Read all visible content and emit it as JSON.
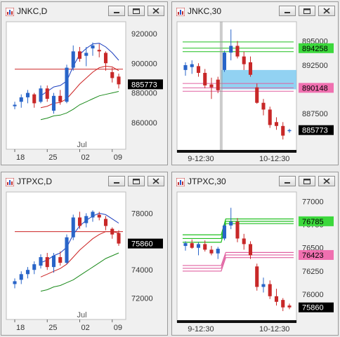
{
  "colors": {
    "up": "#2864c8",
    "down": "#c82828",
    "chart_bg": "#ffffff",
    "axis_bg": "#f0f0f0"
  },
  "icons": {
    "app": "chart-app-icon",
    "minimize": "minimize-icon",
    "maximize": "maximize-icon",
    "close": "close-icon"
  },
  "windows": [
    {
      "title": "JNKC,D"
    },
    {
      "title": "JNKC,30"
    },
    {
      "title": "JTPXC,D"
    },
    {
      "title": "JTPXC,30"
    }
  ],
  "chart_data": [
    {
      "type": "candlestick",
      "symbol": "JNKC",
      "timeframe": "D",
      "ylim": [
        842000,
        928000
      ],
      "yticks": [
        "920000",
        "900000",
        "880000",
        "860000"
      ],
      "xticks": [
        "18",
        "25",
        "02",
        "09"
      ],
      "month_label": "Jul",
      "last_price": "885773",
      "candles": [
        [
          871000,
          874000,
          869000,
          872000
        ],
        [
          874000,
          879000,
          870000,
          877000
        ],
        [
          877000,
          882000,
          873000,
          880000
        ],
        [
          879000,
          880000,
          870000,
          873000
        ],
        [
          874000,
          885000,
          873000,
          883000
        ],
        [
          883000,
          885000,
          874000,
          876000
        ],
        [
          868000,
          880000,
          866000,
          878000
        ],
        [
          878000,
          882000,
          872000,
          874000
        ],
        [
          874000,
          899000,
          873000,
          897000
        ],
        [
          897000,
          912000,
          895000,
          908000
        ],
        [
          908000,
          911000,
          901000,
          903000
        ],
        [
          905000,
          911000,
          898000,
          907000
        ],
        [
          910000,
          914000,
          905000,
          912000
        ],
        [
          909000,
          913000,
          904000,
          908000
        ],
        [
          907000,
          908000,
          895000,
          900000
        ],
        [
          894000,
          897000,
          887000,
          890000
        ],
        [
          891000,
          893000,
          883000,
          885773
        ]
      ],
      "lines": [
        {
          "name": "upper-band",
          "color": "#1c3fbf",
          "values": [
            null,
            null,
            null,
            null,
            878000,
            881000,
            884000,
            885000,
            888000,
            898000,
            906000,
            910000,
            913000,
            913500,
            911000,
            907000,
            902000
          ]
        },
        {
          "name": "ma",
          "color": "#cc2222",
          "values": [
            null,
            null,
            null,
            null,
            870000,
            871000,
            873000,
            873500,
            876000,
            881000,
            886000,
            890000,
            894000,
            897000,
            898000,
            897500,
            895000
          ]
        },
        {
          "name": "lower-band",
          "color": "#1a8a1a",
          "values": [
            null,
            null,
            null,
            null,
            862000,
            863000,
            864500,
            865000,
            866500,
            869000,
            872000,
            874000,
            876000,
            878000,
            879000,
            880000,
            881000
          ]
        }
      ],
      "hlines": [
        {
          "color": "#cc2222",
          "value": 896000,
          "from_index": 0
        }
      ]
    },
    {
      "type": "candlestick",
      "symbol": "JNKC",
      "timeframe": "30",
      "ylim": [
        883500,
        897000
      ],
      "yticks": [
        "895000",
        "892500",
        "890000",
        "887500"
      ],
      "tag_labels": [
        {
          "value": 894258,
          "text": "894258",
          "bg": "#3cd83c",
          "fg": "#000000"
        },
        {
          "value": 890148,
          "text": "890148",
          "bg": "#f070b0",
          "fg": "#000000"
        }
      ],
      "xticks": [
        "9-12:30",
        "10-12:30"
      ],
      "last_price": "885773",
      "candles": [
        [
          892000,
          892800,
          891400,
          892500
        ],
        [
          892300,
          893000,
          891600,
          892600
        ],
        [
          892400,
          892700,
          891300,
          891700
        ],
        [
          891700,
          892100,
          890100,
          890400
        ],
        [
          890500,
          891200,
          889000,
          890200
        ],
        [
          891000,
          891300,
          889600,
          889900
        ],
        [
          892000,
          894000,
          891800,
          893800
        ],
        [
          893800,
          896200,
          893000,
          894500
        ],
        [
          894500,
          895000,
          893200,
          893400
        ],
        [
          893400,
          893900,
          892000,
          892600
        ],
        [
          892800,
          893400,
          891300,
          891500
        ],
        [
          890200,
          890600,
          888500,
          888600
        ],
        [
          888600,
          889000,
          887300,
          887900
        ],
        [
          887900,
          888200,
          886000,
          886300
        ],
        [
          886600,
          887100,
          885800,
          886200
        ],
        [
          886200,
          886600,
          884800,
          885200
        ],
        [
          885700,
          885900,
          885500,
          885773
        ]
      ],
      "hlines": [
        {
          "color": "#1fbf1f",
          "value": 894258,
          "from_index": 0
        },
        {
          "color": "#1fbf1f",
          "value": 894900,
          "from_index": 0
        },
        {
          "color": "#1fbf1f",
          "value": 893900,
          "from_index": 0
        },
        {
          "color": "#e060a0",
          "value": 890148,
          "from_index": 0
        },
        {
          "color": "#e060a0",
          "value": 890600,
          "from_index": 0
        },
        {
          "color": "#e060a0",
          "value": 889800,
          "from_index": 0
        }
      ],
      "zone": {
        "from_value": 890000,
        "to_value": 892000,
        "from_index": 6,
        "color": "#7fcaf0"
      }
    },
    {
      "type": "candlestick",
      "symbol": "JTPXC",
      "timeframe": "D",
      "ylim": [
        70500,
        79500
      ],
      "yticks": [
        "78000",
        "76000",
        "74000",
        "72000"
      ],
      "xticks": [
        "18",
        "25",
        "02",
        "09"
      ],
      "month_label": "Jul",
      "last_price": "75860",
      "candles": [
        [
          73000,
          73400,
          72700,
          73200
        ],
        [
          73300,
          73900,
          73000,
          73700
        ],
        [
          73700,
          74200,
          73400,
          74000
        ],
        [
          74000,
          74600,
          73700,
          74400
        ],
        [
          74300,
          75100,
          74100,
          74900
        ],
        [
          74900,
          75200,
          74000,
          74200
        ],
        [
          74200,
          75200,
          73800,
          75000
        ],
        [
          74900,
          75300,
          74300,
          74500
        ],
        [
          74500,
          76500,
          74400,
          76300
        ],
        [
          76300,
          77900,
          76100,
          77700
        ],
        [
          77700,
          78100,
          76900,
          77100
        ],
        [
          77300,
          78000,
          77000,
          77800
        ],
        [
          77700,
          78200,
          77400,
          78100
        ],
        [
          77900,
          78100,
          77500,
          77700
        ],
        [
          77600,
          77800,
          76800,
          77100
        ],
        [
          76900,
          77000,
          76200,
          76500
        ],
        [
          76600,
          76800,
          75700,
          75860
        ]
      ],
      "lines": [
        {
          "name": "upper-band",
          "color": "#1c3fbf",
          "values": [
            null,
            null,
            null,
            null,
            74500,
            74700,
            75000,
            75200,
            75600,
            76500,
            77100,
            77500,
            77800,
            78000,
            77900,
            77600,
            77300
          ]
        },
        {
          "name": "ma",
          "color": "#cc2222",
          "values": [
            null,
            null,
            null,
            null,
            73500,
            73700,
            73900,
            74100,
            74400,
            74900,
            75400,
            75800,
            76200,
            76500,
            76700,
            76700,
            76600
          ]
        },
        {
          "name": "lower-band",
          "color": "#1a8a1a",
          "values": [
            null,
            null,
            null,
            null,
            72500,
            72600,
            72800,
            72900,
            73100,
            73300,
            73600,
            73900,
            74200,
            74500,
            74800,
            75000,
            75200
          ]
        }
      ],
      "hlines": [
        {
          "color": "#cc2222",
          "value": 76700,
          "from_index": 0
        }
      ]
    },
    {
      "type": "candlestick",
      "symbol": "JTPXC",
      "timeframe": "30",
      "ylim": [
        75700,
        77100
      ],
      "yticks": [
        "77000",
        "76750",
        "76500",
        "76250",
        "76000"
      ],
      "tag_labels": [
        {
          "value": 76785,
          "text": "76785",
          "bg": "#3cd83c",
          "fg": "#000000"
        },
        {
          "value": 76423,
          "text": "76423",
          "bg": "#f070b0",
          "fg": "#000000"
        }
      ],
      "xticks": [
        "9-12:30",
        "10-12:30"
      ],
      "last_price": "75860",
      "candles": [
        [
          76520,
          76570,
          76470,
          76550
        ],
        [
          76550,
          76590,
          76490,
          76500
        ],
        [
          76500,
          76560,
          76420,
          76540
        ],
        [
          76540,
          76580,
          76460,
          76480
        ],
        [
          76480,
          76520,
          76420,
          76440
        ],
        [
          76440,
          76510,
          76380,
          76490
        ],
        [
          76600,
          76760,
          76580,
          76740
        ],
        [
          76740,
          76930,
          76700,
          76780
        ],
        [
          76780,
          76820,
          76560,
          76600
        ],
        [
          76600,
          76650,
          76480,
          76540
        ],
        [
          76540,
          76570,
          76380,
          76420
        ],
        [
          76300,
          76330,
          76040,
          76080
        ],
        [
          76080,
          76180,
          76020,
          76110
        ],
        [
          76110,
          76150,
          75950,
          75980
        ],
        [
          75980,
          76060,
          75880,
          75920
        ],
        [
          75940,
          75960,
          75820,
          75860
        ],
        [
          75880,
          75900,
          75840,
          75860
        ]
      ],
      "hlines": [
        {
          "color": "#1fbf1f",
          "value": 76785,
          "from_index": 6,
          "prior_value": 76600
        },
        {
          "color": "#1fbf1f",
          "value": 76810,
          "from_index": 6,
          "prior_value": 76640
        },
        {
          "color": "#1fbf1f",
          "value": 76760,
          "from_index": 6,
          "prior_value": 76560
        },
        {
          "color": "#e060a0",
          "value": 76423,
          "from_index": 6,
          "prior_value": 76280
        },
        {
          "color": "#e060a0",
          "value": 76450,
          "from_index": 6,
          "prior_value": 76310
        },
        {
          "color": "#e060a0",
          "value": 76395,
          "from_index": 6,
          "prior_value": 76250
        }
      ]
    }
  ]
}
